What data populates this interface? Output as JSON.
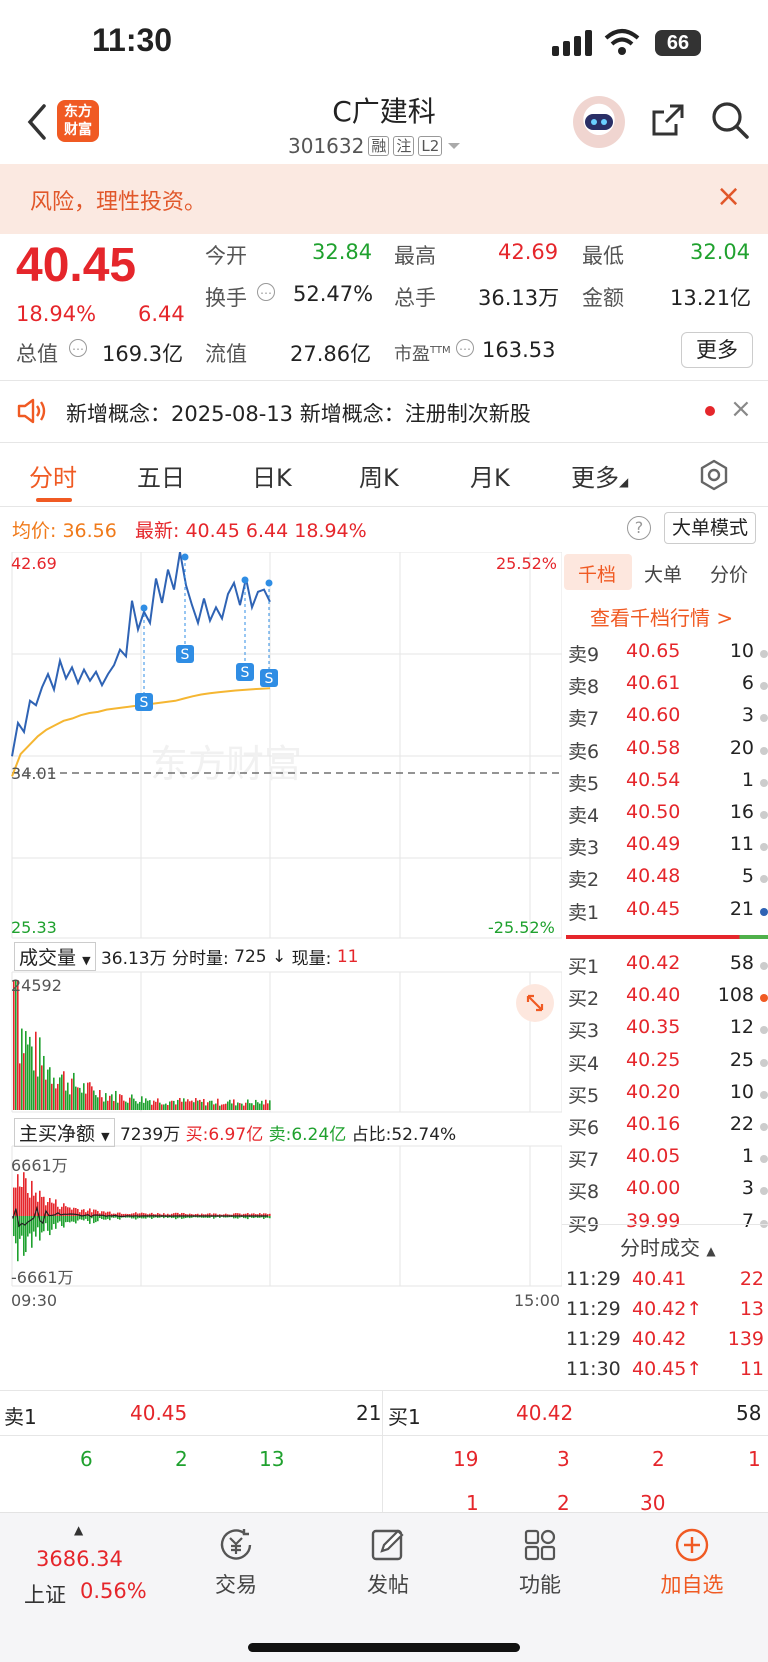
{
  "status": {
    "time": "11:30",
    "battery": "66"
  },
  "header": {
    "logo": "东方\n财富",
    "title": "C广建科",
    "code": "301632",
    "tags": [
      "融",
      "注",
      "L2"
    ]
  },
  "risk_banner": {
    "text": "风险，理性投资。"
  },
  "quote": {
    "price": "40.45",
    "change_pct": "18.94%",
    "change": "6.44",
    "open_label": "今开",
    "open": "32.84",
    "high_label": "最高",
    "high": "42.69",
    "low_label": "最低",
    "low": "32.04",
    "turnover_label": "换手",
    "turnover": "52.47%",
    "volume_label": "总手",
    "volume": "36.13万",
    "amount_label": "金额",
    "amount": "13.21亿",
    "mcap_label": "总值",
    "mcap": "169.3亿",
    "float_label": "流值",
    "float": "27.86亿",
    "pe_label": "市盈",
    "pe_sup": "TTM",
    "pe": "163.53",
    "more": "更多"
  },
  "concept": {
    "text": "新增概念：2025-08-13 新增概念：注册制次新股"
  },
  "tabs": [
    "分时",
    "五日",
    "日K",
    "周K",
    "月K",
    "更多"
  ],
  "infoline": {
    "avg_label": "均价:",
    "avg": "36.56",
    "latest_label": "最新:",
    "latest": "40.45",
    "chg": "6.44",
    "pct": "18.94%"
  },
  "big_order_mode": "大单模式",
  "chart": {
    "price_high": "42.69",
    "price_low": "25.33",
    "pct_high": "25.52%",
    "pct_low": "-25.52%",
    "prev_close": "34.01",
    "watermark": "东方财富",
    "vol_selector": "成交量",
    "vol_total": "36.13万",
    "vol_info_label": "分时量:",
    "vol_info": "725",
    "vol_now_label": "现量:",
    "vol_now": "11",
    "vol_max": "24592",
    "flow_selector": "主买净额",
    "flow_total": "7239万",
    "flow_buy": "买:6.97亿",
    "flow_sell": "卖:6.24亿",
    "flow_ratio": "占比:52.74%",
    "flow_max": "6661万",
    "flow_min": "-6661万",
    "time_start": "09:30",
    "time_end": "15:00",
    "s_marker": "S"
  },
  "chart_data": {
    "type": "line",
    "x_range": [
      "09:30",
      "15:00"
    ],
    "ylim": [
      25.33,
      42.69
    ],
    "prev_close": 34.01,
    "series": [
      {
        "values": [
          33.5,
          35.0,
          34.6,
          36.0,
          35.8,
          36.6,
          37.2,
          36.5,
          37.8,
          37.0,
          37.5,
          36.8,
          37.4,
          36.9,
          37.3,
          36.7,
          37.2,
          37.6,
          38.3,
          38.0,
          40.5,
          39.2,
          40.0,
          39.5,
          41.5,
          40.4,
          41.9,
          41.0,
          42.69,
          41.2,
          40.3,
          39.5,
          40.6,
          39.6,
          40.2,
          39.7,
          40.8,
          41.3,
          40.3,
          41.5,
          40.2,
          40.9,
          41.0,
          40.45
        ]
      },
      {
        "values": [
          32.6,
          33.6,
          34.0,
          34.4,
          34.7,
          34.9,
          35.1,
          35.2,
          35.35,
          35.45,
          35.5,
          35.6,
          35.65,
          35.7,
          35.75,
          35.8,
          35.85,
          35.9,
          35.95,
          36.0,
          36.1,
          36.2,
          36.28,
          36.34,
          36.38,
          36.42,
          36.46,
          36.49,
          36.52,
          36.54,
          36.56
        ]
      }
    ]
  },
  "book": {
    "tabs": [
      "千档",
      "大单",
      "分价"
    ],
    "view_levels": "查看千档行情 >",
    "asks": [
      {
        "label": "卖9",
        "price": "40.65",
        "vol": "10"
      },
      {
        "label": "卖8",
        "price": "40.61",
        "vol": "6"
      },
      {
        "label": "卖7",
        "price": "40.60",
        "vol": "3"
      },
      {
        "label": "卖6",
        "price": "40.58",
        "vol": "20"
      },
      {
        "label": "卖5",
        "price": "40.54",
        "vol": "1"
      },
      {
        "label": "卖4",
        "price": "40.50",
        "vol": "16"
      },
      {
        "label": "卖3",
        "price": "40.49",
        "vol": "11"
      },
      {
        "label": "卖2",
        "price": "40.48",
        "vol": "5"
      },
      {
        "label": "卖1",
        "price": "40.45",
        "vol": "21"
      }
    ],
    "bids": [
      {
        "label": "买1",
        "price": "40.42",
        "vol": "58"
      },
      {
        "label": "买2",
        "price": "40.40",
        "vol": "108"
      },
      {
        "label": "买3",
        "price": "40.35",
        "vol": "12"
      },
      {
        "label": "买4",
        "price": "40.25",
        "vol": "25"
      },
      {
        "label": "买5",
        "price": "40.20",
        "vol": "10"
      },
      {
        "label": "买6",
        "price": "40.16",
        "vol": "22"
      },
      {
        "label": "买7",
        "price": "40.05",
        "vol": "1"
      },
      {
        "label": "买8",
        "price": "40.00",
        "vol": "3"
      },
      {
        "label": "买9",
        "price": "39.99",
        "vol": "7"
      }
    ],
    "ticks_title": "分时成交",
    "ticks": [
      {
        "time": "11:29",
        "price": "40.41",
        "vol": "22"
      },
      {
        "time": "11:29",
        "price": "40.42↑",
        "vol": "13"
      },
      {
        "time": "11:29",
        "price": "40.42",
        "vol": "139"
      },
      {
        "time": "11:30",
        "price": "40.45↑",
        "vol": "11"
      }
    ]
  },
  "ladder": {
    "sell_label": "卖1",
    "sell_price": "40.45",
    "sell_vol": "21",
    "buy_label": "买1",
    "buy_price": "40.42",
    "buy_vol": "58",
    "sell_queue": [
      "6",
      "2",
      "13"
    ],
    "buy_queue_row1": [
      "19",
      "3",
      "2",
      "1"
    ],
    "buy_queue_row2": [
      "1",
      "2",
      "30"
    ]
  },
  "nav": {
    "index_value": "3686.34",
    "index_name": "上证",
    "index_pct": "0.56%",
    "items": [
      "交易",
      "发帖",
      "功能",
      "加自选"
    ]
  },
  "colors": {
    "up": "#e5262b",
    "down": "#1fa12e",
    "accent": "#f05a23",
    "price_line": "#2f63b4",
    "avg_line": "#f5b632"
  }
}
